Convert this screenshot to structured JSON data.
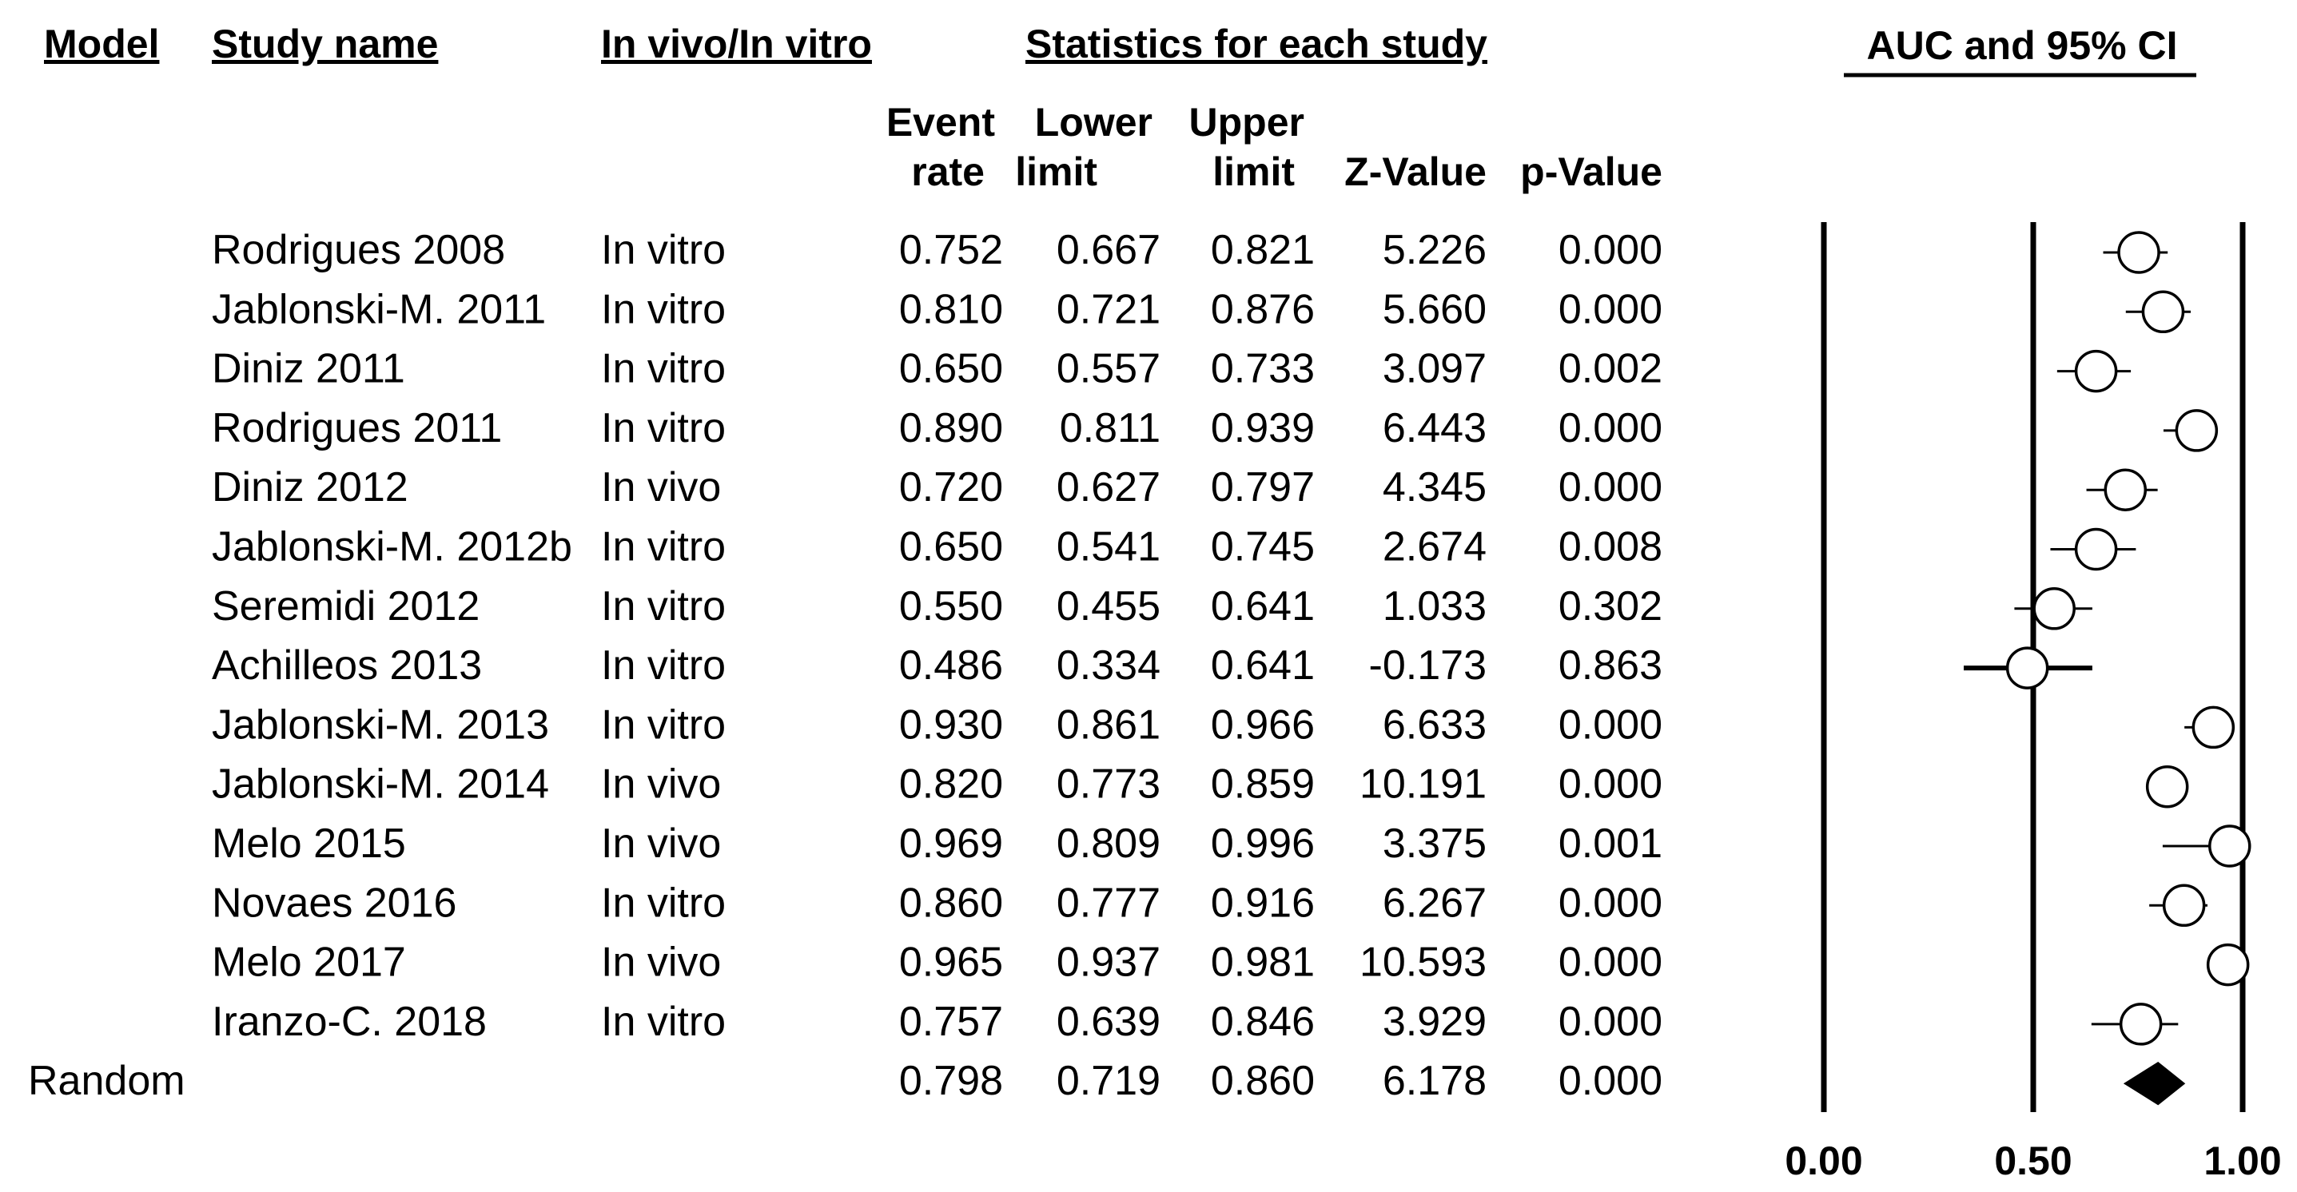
{
  "headers": {
    "model": "Model",
    "study_name": "Study name",
    "invivo": "In vivo/In vitro",
    "stats": "Statistics for each study",
    "auc": "AUC and 95% CI",
    "col_event": [
      "Event",
      "rate"
    ],
    "col_lower": [
      "Lower",
      "limit"
    ],
    "col_upper": [
      "Upper",
      "limit"
    ],
    "col_z": "Z-Value",
    "col_p": "p-Value"
  },
  "chart_data": {
    "type": "forest",
    "xlim": [
      0,
      1
    ],
    "ticks": [
      "0.00",
      "0.50",
      "1.00"
    ],
    "reference_lines": [
      0,
      0.5,
      1
    ],
    "studies": [
      {
        "name": "Rodrigues 2008",
        "type": "In vitro",
        "event": "0.752",
        "lower": "0.667",
        "upper": "0.821",
        "z": "5.226",
        "p": "0.000"
      },
      {
        "name": "Jablonski-M. 2011",
        "type": "In vitro",
        "event": "0.810",
        "lower": "0.721",
        "upper": "0.876",
        "z": "5.660",
        "p": "0.000"
      },
      {
        "name": "Diniz 2011",
        "type": "In vitro",
        "event": "0.650",
        "lower": "0.557",
        "upper": "0.733",
        "z": "3.097",
        "p": "0.002"
      },
      {
        "name": "Rodrigues 2011",
        "type": "In vitro",
        "event": "0.890",
        "lower": "0.811",
        "upper": "0.939",
        "z": "6.443",
        "p": "0.000"
      },
      {
        "name": "Diniz 2012",
        "type": "In vivo",
        "event": "0.720",
        "lower": "0.627",
        "upper": "0.797",
        "z": "4.345",
        "p": "0.000"
      },
      {
        "name": "Jablonski-M. 2012b",
        "type": "In vitro",
        "event": "0.650",
        "lower": "0.541",
        "upper": "0.745",
        "z": "2.674",
        "p": "0.008"
      },
      {
        "name": "Seremidi 2012",
        "type": "In vitro",
        "event": "0.550",
        "lower": "0.455",
        "upper": "0.641",
        "z": "1.033",
        "p": "0.302"
      },
      {
        "name": "Achilleos 2013",
        "type": "In vitro",
        "event": "0.486",
        "lower": "0.334",
        "upper": "0.641",
        "z": "-0.173",
        "p": "0.863"
      },
      {
        "name": "Jablonski-M. 2013",
        "type": "In vitro",
        "event": "0.930",
        "lower": "0.861",
        "upper": "0.966",
        "z": "6.633",
        "p": "0.000"
      },
      {
        "name": "Jablonski-M. 2014",
        "type": "In vivo",
        "event": "0.820",
        "lower": "0.773",
        "upper": "0.859",
        "z": "10.191",
        "p": "0.000"
      },
      {
        "name": "Melo 2015",
        "type": "In vivo",
        "event": "0.969",
        "lower": "0.809",
        "upper": "0.996",
        "z": "3.375",
        "p": "0.001"
      },
      {
        "name": "Novaes 2016",
        "type": "In vitro",
        "event": "0.860",
        "lower": "0.777",
        "upper": "0.916",
        "z": "6.267",
        "p": "0.000"
      },
      {
        "name": "Melo 2017",
        "type": "In vivo",
        "event": "0.965",
        "lower": "0.937",
        "upper": "0.981",
        "z": "10.593",
        "p": "0.000"
      },
      {
        "name": "Iranzo-C. 2018",
        "type": "In vitro",
        "event": "0.757",
        "lower": "0.639",
        "upper": "0.846",
        "z": "3.929",
        "p": "0.000"
      }
    ],
    "summary": {
      "model": "Random",
      "event": "0.798",
      "lower": "0.719",
      "upper": "0.860",
      "z": "6.178",
      "p": "0.000"
    }
  }
}
